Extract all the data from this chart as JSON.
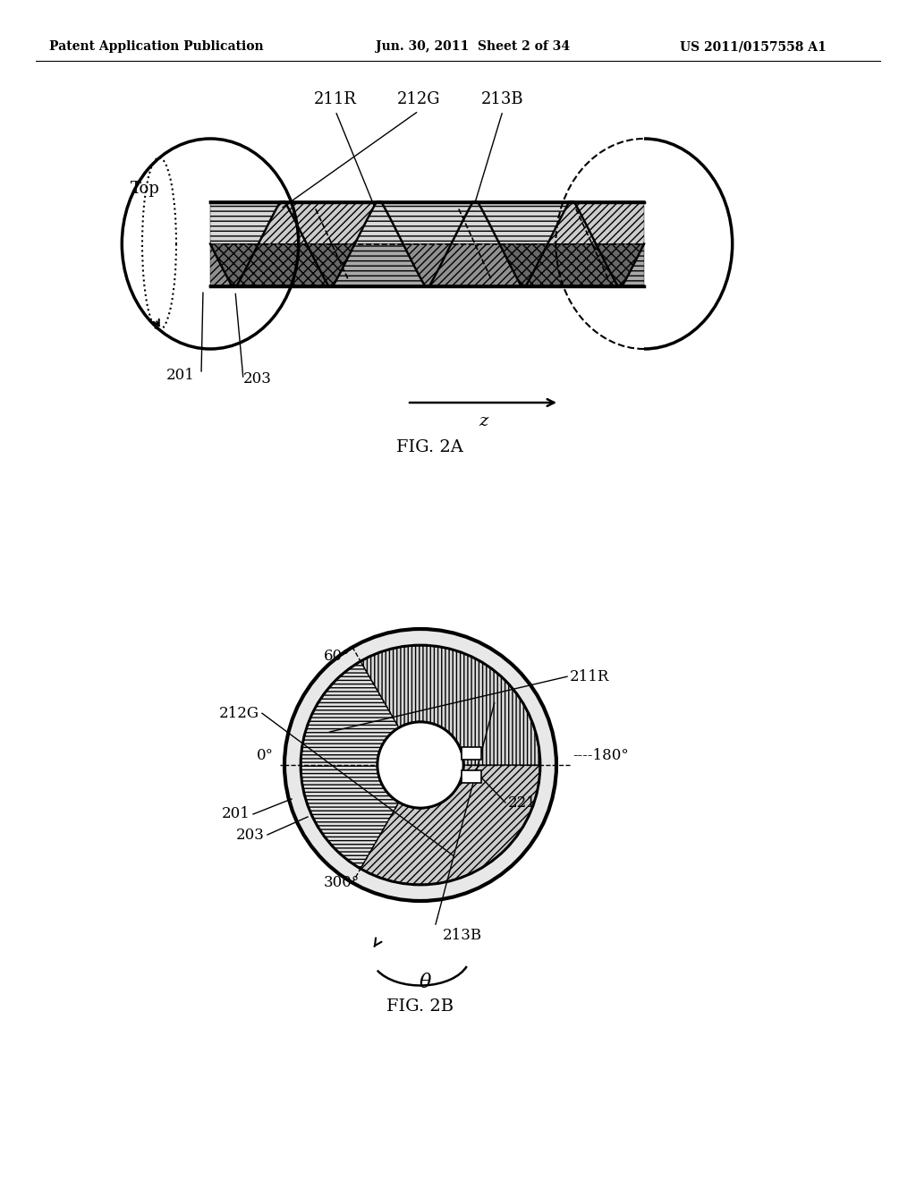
{
  "header_left": "Patent Application Publication",
  "header_mid": "Jun. 30, 2011  Sheet 2 of 34",
  "header_right": "US 2011/0157558 A1",
  "fig2a_label": "FIG. 2A",
  "fig2b_label": "FIG. 2B",
  "label_211R": "211R",
  "label_212G": "212G",
  "label_213B": "213B",
  "label_201": "201",
  "label_203": "203",
  "label_top": "Top",
  "label_z": "z",
  "label_300": "300°",
  "label_0": "0°",
  "label_60": "60°",
  "label_180": "180°",
  "label_201b": "201",
  "label_203b": "203",
  "label_211Rb": "211R",
  "label_212Gb": "212G",
  "label_213Bb": "213B",
  "label_221": "221",
  "label_theta": "θ",
  "bg_color": "#ffffff",
  "line_color": "#000000"
}
